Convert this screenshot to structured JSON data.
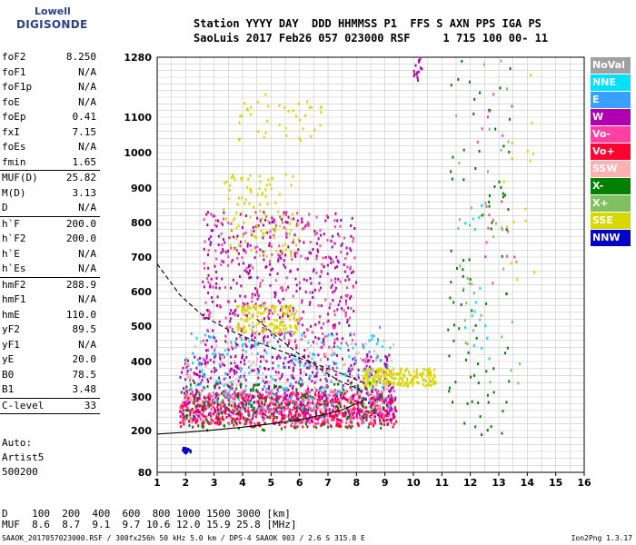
{
  "logo": {
    "line1": "Lowell",
    "line2": "DIGISONDE"
  },
  "header": {
    "row1": "Station YYYY DAY  DDD HHMMSS P1  FFS S AXN PPS IGA PS",
    "row2": "SaoLuis 2017 Feb26 057 023000 RSF     1 715 100 00- 11"
  },
  "params": [
    {
      "k": "foF2",
      "v": "8.250"
    },
    {
      "k": "foF1",
      "v": "N/A"
    },
    {
      "k": "foF1p",
      "v": "N/A"
    },
    {
      "k": "foE",
      "v": "N/A"
    },
    {
      "k": "foEp",
      "v": "0.41"
    },
    {
      "k": "fxI",
      "v": "7.15"
    },
    {
      "k": "foEs",
      "v": "N/A"
    },
    {
      "k": "fmin",
      "v": "1.65"
    },
    {
      "sep": true
    },
    {
      "k": "MUF(D)",
      "v": "25.82"
    },
    {
      "k": "M(D)",
      "v": "3.13"
    },
    {
      "k": "D",
      "v": "N/A"
    },
    {
      "sep": true
    },
    {
      "k": "h`F",
      "v": "200.0"
    },
    {
      "k": "h`F2",
      "v": "200.0"
    },
    {
      "k": "h`E",
      "v": "N/A"
    },
    {
      "k": "h`Es",
      "v": "N/A"
    },
    {
      "sep": true
    },
    {
      "k": "hmF2",
      "v": "288.9"
    },
    {
      "k": "hmF1",
      "v": "N/A"
    },
    {
      "k": "hmE",
      "v": "110.0"
    },
    {
      "k": "yF2",
      "v": "89.5"
    },
    {
      "k": "yF1",
      "v": "N/A"
    },
    {
      "k": "yE",
      "v": "20.0"
    },
    {
      "k": "B0",
      "v": "78.5"
    },
    {
      "k": "B1",
      "v": "3.48"
    },
    {
      "sep": true
    },
    {
      "k": "C-level",
      "v": "33"
    },
    {
      "sep": true
    }
  ],
  "side": {
    "line1": "Auto:",
    "line2": "Artist5",
    "line3": "500200"
  },
  "legend": [
    {
      "label": "NoVal",
      "color": "#a0a0a0"
    },
    {
      "label": "NNE",
      "color": "#00e0ff"
    },
    {
      "label": "E",
      "color": "#3aa0ff"
    },
    {
      "label": "W",
      "color": "#b000b0"
    },
    {
      "label": "Vo-",
      "color": "#ff40a0"
    },
    {
      "label": "Vo+",
      "color": "#ff0030"
    },
    {
      "label": "SSW",
      "color": "#ffb0b0"
    },
    {
      "label": "X-",
      "color": "#008000"
    },
    {
      "label": "X+",
      "color": "#80c060"
    },
    {
      "label": "SSE",
      "color": "#d8d800"
    },
    {
      "label": "NNW",
      "color": "#0000c8"
    }
  ],
  "dmuf": {
    "row1": "D    100  200  400  600  800 1000 1500 3000 [km]",
    "row2": "MUF  8.6  8.7  9.1  9.7 10.6 12.0 15.9 25.8 [MHz]"
  },
  "footer": "SAAOK_2017057023000.RSF / 300fx256h 50 kHz 5.0 km / DPS-4 SAAOK 903 / 2.6 S 315.8 E",
  "version": "Ion2Png 1.3.17",
  "chart_data": {
    "type": "scatter",
    "title": "",
    "xlabel": "",
    "ylabel": "",
    "xlim": [
      1,
      16
    ],
    "ylim": [
      80,
      1280
    ],
    "x_ticks": [
      1,
      2,
      3,
      4,
      5,
      6,
      7,
      8,
      9,
      10,
      11,
      12,
      13,
      14,
      15,
      16
    ],
    "y_ticks": [
      80,
      200,
      300,
      400,
      500,
      600,
      700,
      800,
      900,
      1000,
      1100,
      1280
    ],
    "grid": true,
    "traces": [
      {
        "name": "profile",
        "style": "solid",
        "points": [
          [
            1.0,
            190
          ],
          [
            2,
            195
          ],
          [
            3,
            202
          ],
          [
            4,
            210
          ],
          [
            5,
            220
          ],
          [
            6,
            232
          ],
          [
            7,
            250
          ],
          [
            7.5,
            262
          ],
          [
            8.0,
            280
          ],
          [
            8.25,
            289
          ]
        ]
      },
      {
        "name": "profile-upper",
        "style": "dashed",
        "points": [
          [
            1.0,
            680
          ],
          [
            1.8,
            590
          ],
          [
            2.6,
            530
          ],
          [
            3.5,
            490
          ],
          [
            4.5,
            455
          ],
          [
            5.5,
            425
          ],
          [
            6.5,
            395
          ],
          [
            7.5,
            365
          ],
          [
            8.25,
            340
          ]
        ]
      },
      {
        "name": "inner-curve",
        "style": "dashed",
        "points": [
          [
            4.5,
            520
          ],
          [
            5.2,
            470
          ],
          [
            6.0,
            420
          ],
          [
            6.8,
            375
          ],
          [
            7.4,
            345
          ],
          [
            8.0,
            325
          ],
          [
            8.25,
            310
          ]
        ]
      }
    ],
    "clusters": [
      {
        "color": "#ff40a0",
        "xr": [
          1.8,
          9.4
        ],
        "yr": [
          220,
          320
        ],
        "n": 650
      },
      {
        "color": "#ff0030",
        "xr": [
          1.8,
          9.4
        ],
        "yr": [
          210,
          310
        ],
        "n": 420
      },
      {
        "color": "#b000b0",
        "xr": [
          1.8,
          9.4
        ],
        "yr": [
          230,
          420
        ],
        "n": 520
      },
      {
        "color": "#00e0ff",
        "xr": [
          2.0,
          9.2
        ],
        "yr": [
          260,
          480
        ],
        "n": 150
      },
      {
        "color": "#d8d800",
        "xr": [
          8.2,
          10.8
        ],
        "yr": [
          330,
          380
        ],
        "n": 220
      },
      {
        "color": "#ffb0b0",
        "xr": [
          2.0,
          9.3
        ],
        "yr": [
          260,
          460
        ],
        "n": 180
      },
      {
        "color": "#b000b0",
        "xr": [
          2.6,
          8.0
        ],
        "yr": [
          430,
          830
        ],
        "n": 380
      },
      {
        "color": "#ff40a0",
        "xr": [
          2.6,
          8.0
        ],
        "yr": [
          430,
          830
        ],
        "n": 220
      },
      {
        "color": "#008000",
        "xr": [
          2.0,
          9.0
        ],
        "yr": [
          200,
          340
        ],
        "n": 160
      },
      {
        "color": "#3aa0ff",
        "xr": [
          2.0,
          9.0
        ],
        "yr": [
          280,
          500
        ],
        "n": 70
      },
      {
        "color": "#d8d800",
        "xr": [
          3.8,
          6.0
        ],
        "yr": [
          480,
          560
        ],
        "n": 130
      },
      {
        "color": "#d8d800",
        "xr": [
          3.3,
          6.0
        ],
        "yr": [
          700,
          940
        ],
        "n": 110
      },
      {
        "color": "#d8d800",
        "xr": [
          3.8,
          6.8
        ],
        "yr": [
          1020,
          1170
        ],
        "n": 40
      },
      {
        "color": "#0000c8",
        "xr": [
          1.9,
          2.2
        ],
        "yr": [
          135,
          150
        ],
        "n": 25
      },
      {
        "color": "#008000",
        "xr": [
          11.2,
          13.5
        ],
        "yr": [
          180,
          1280
        ],
        "n": 90
      },
      {
        "color": "#80c060",
        "xr": [
          11.5,
          13.8
        ],
        "yr": [
          300,
          1280
        ],
        "n": 40
      },
      {
        "color": "#00e0ff",
        "xr": [
          11.8,
          12.8
        ],
        "yr": [
          400,
          900
        ],
        "n": 15
      },
      {
        "color": "#b000b0",
        "xr": [
          10.0,
          10.3
        ],
        "yr": [
          1210,
          1280
        ],
        "n": 15
      },
      {
        "color": "#ff40a0",
        "xr": [
          12.2,
          13.8
        ],
        "yr": [
          600,
          1280
        ],
        "n": 18
      },
      {
        "color": "#d8d800",
        "xr": [
          12.8,
          14.4
        ],
        "yr": [
          600,
          1250
        ],
        "n": 15
      }
    ]
  }
}
